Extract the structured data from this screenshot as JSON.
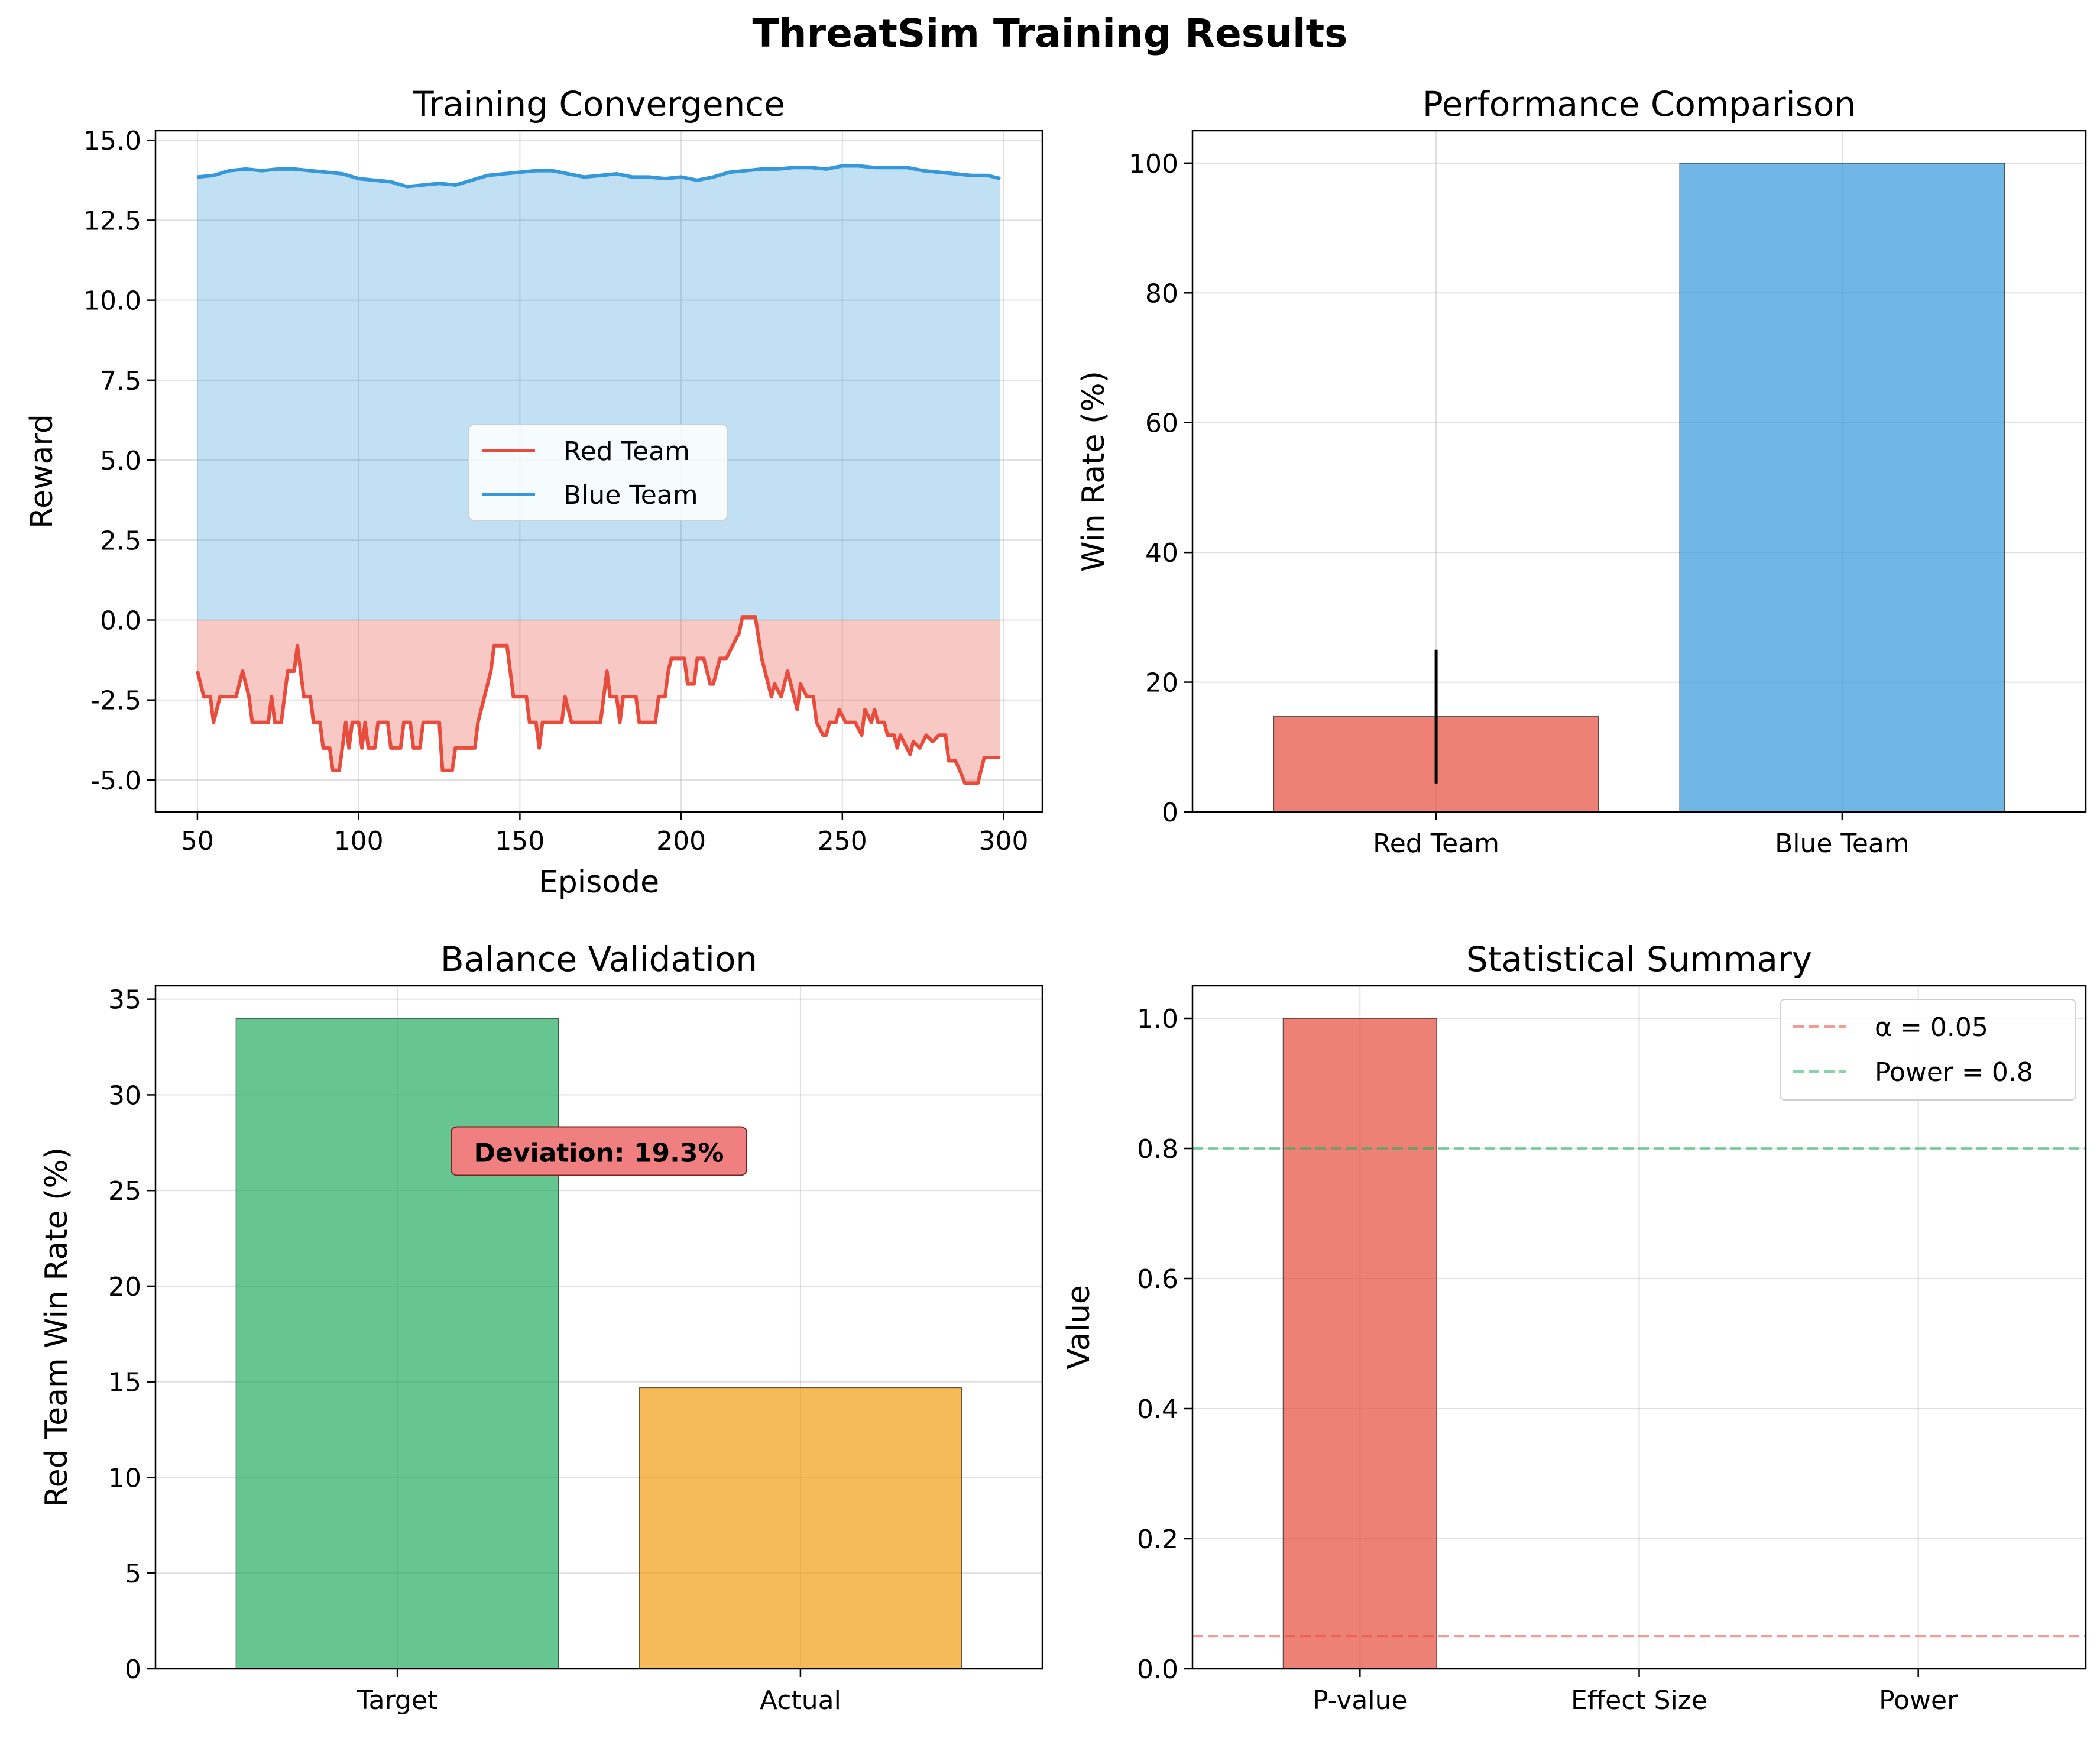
{
  "figure": {
    "title": "ThreatSim Training Results"
  },
  "chart_data": [
    {
      "type": "line",
      "title": "Training Convergence",
      "xlabel": "Episode",
      "ylabel": "Reward",
      "xlim": [
        37,
        312
      ],
      "ylim": [
        -6.0,
        15.3
      ],
      "xticks": [
        50,
        100,
        150,
        200,
        250,
        300
      ],
      "yticks": [
        -5.0,
        -2.5,
        0.0,
        2.5,
        5.0,
        7.5,
        10.0,
        12.5,
        15.0
      ],
      "grid": true,
      "legend_position": "center",
      "fill_to_zero": true,
      "series": [
        {
          "name": "Red Team",
          "color": "#e74c3c",
          "points": [
            [
              50,
              -1.6
            ],
            [
              52,
              -2.4
            ],
            [
              54,
              -2.4
            ],
            [
              55,
              -3.2
            ],
            [
              57,
              -2.4
            ],
            [
              62,
              -2.4
            ],
            [
              64,
              -1.6
            ],
            [
              66,
              -2.4
            ],
            [
              67,
              -3.2
            ],
            [
              72,
              -3.2
            ],
            [
              73,
              -2.4
            ],
            [
              74,
              -3.2
            ],
            [
              76,
              -3.2
            ],
            [
              78,
              -1.6
            ],
            [
              80,
              -1.6
            ],
            [
              81,
              -0.8
            ],
            [
              83,
              -2.4
            ],
            [
              85,
              -2.4
            ],
            [
              86,
              -3.2
            ],
            [
              88,
              -3.2
            ],
            [
              89,
              -4.0
            ],
            [
              91,
              -4.0
            ],
            [
              92,
              -4.7
            ],
            [
              94,
              -4.7
            ],
            [
              96,
              -3.2
            ],
            [
              97,
              -4.0
            ],
            [
              98,
              -3.2
            ],
            [
              100,
              -3.2
            ],
            [
              101,
              -4.0
            ],
            [
              102,
              -3.2
            ],
            [
              103,
              -4.0
            ],
            [
              105,
              -4.0
            ],
            [
              106,
              -3.2
            ],
            [
              109,
              -3.2
            ],
            [
              110,
              -4.0
            ],
            [
              113,
              -4.0
            ],
            [
              114,
              -3.2
            ],
            [
              116,
              -3.2
            ],
            [
              117,
              -4.0
            ],
            [
              119,
              -4.0
            ],
            [
              120,
              -3.2
            ],
            [
              125,
              -3.2
            ],
            [
              126,
              -4.7
            ],
            [
              129,
              -4.7
            ],
            [
              130,
              -4.0
            ],
            [
              136,
              -4.0
            ],
            [
              137,
              -3.2
            ],
            [
              139,
              -2.4
            ],
            [
              141,
              -1.6
            ],
            [
              142,
              -0.8
            ],
            [
              146,
              -0.8
            ],
            [
              148,
              -2.4
            ],
            [
              152,
              -2.4
            ],
            [
              153,
              -3.2
            ],
            [
              155,
              -3.2
            ],
            [
              156,
              -4.0
            ],
            [
              157,
              -3.2
            ],
            [
              163,
              -3.2
            ],
            [
              164,
              -2.4
            ],
            [
              166,
              -3.2
            ],
            [
              175,
              -3.2
            ],
            [
              177,
              -1.6
            ],
            [
              178,
              -2.4
            ],
            [
              180,
              -2.4
            ],
            [
              181,
              -3.2
            ],
            [
              182,
              -2.4
            ],
            [
              186,
              -2.4
            ],
            [
              187,
              -3.2
            ],
            [
              192,
              -3.2
            ],
            [
              193,
              -2.4
            ],
            [
              195,
              -2.4
            ],
            [
              196,
              -1.6
            ],
            [
              197,
              -1.2
            ],
            [
              201,
              -1.2
            ],
            [
              202,
              -2.0
            ],
            [
              204,
              -2.0
            ],
            [
              205,
              -1.2
            ],
            [
              207,
              -1.2
            ],
            [
              209,
              -2.0
            ],
            [
              210,
              -2.0
            ],
            [
              212,
              -1.2
            ],
            [
              214,
              -1.2
            ],
            [
              216,
              -0.8
            ],
            [
              218,
              -0.4
            ],
            [
              219,
              0.1
            ],
            [
              223,
              0.1
            ],
            [
              225,
              -1.2
            ],
            [
              226,
              -1.6
            ],
            [
              228,
              -2.4
            ],
            [
              229,
              -2.0
            ],
            [
              231,
              -2.4
            ],
            [
              233,
              -1.6
            ],
            [
              235,
              -2.4
            ],
            [
              236,
              -2.8
            ],
            [
              237,
              -2.0
            ],
            [
              239,
              -2.4
            ],
            [
              241,
              -2.4
            ],
            [
              242,
              -3.2
            ],
            [
              244,
              -3.6
            ],
            [
              245,
              -3.6
            ],
            [
              246,
              -3.2
            ],
            [
              248,
              -3.2
            ],
            [
              249,
              -2.8
            ],
            [
              251,
              -3.2
            ],
            [
              254,
              -3.2
            ],
            [
              256,
              -3.6
            ],
            [
              257,
              -2.8
            ],
            [
              259,
              -3.2
            ],
            [
              260,
              -2.8
            ],
            [
              261,
              -3.2
            ],
            [
              263,
              -3.2
            ],
            [
              264,
              -3.6
            ],
            [
              266,
              -3.6
            ],
            [
              267,
              -4.0
            ],
            [
              268,
              -3.6
            ],
            [
              270,
              -4.0
            ],
            [
              271,
              -4.2
            ],
            [
              272,
              -3.8
            ],
            [
              274,
              -4.0
            ],
            [
              276,
              -3.6
            ],
            [
              278,
              -3.8
            ],
            [
              280,
              -3.6
            ],
            [
              282,
              -3.6
            ],
            [
              283,
              -4.4
            ],
            [
              285,
              -4.4
            ],
            [
              286,
              -4.6
            ],
            [
              288,
              -5.1
            ],
            [
              292,
              -5.1
            ],
            [
              294,
              -4.3
            ],
            [
              299,
              -4.3
            ]
          ]
        },
        {
          "name": "Blue Team",
          "color": "#3498db",
          "points": [
            [
              50,
              13.85
            ],
            [
              55,
              13.9
            ],
            [
              60,
              14.05
            ],
            [
              65,
              14.1
            ],
            [
              70,
              14.05
            ],
            [
              75,
              14.1
            ],
            [
              80,
              14.1
            ],
            [
              85,
              14.05
            ],
            [
              90,
              14.0
            ],
            [
              95,
              13.95
            ],
            [
              100,
              13.8
            ],
            [
              105,
              13.75
            ],
            [
              110,
              13.7
            ],
            [
              115,
              13.55
            ],
            [
              120,
              13.6
            ],
            [
              125,
              13.65
            ],
            [
              130,
              13.6
            ],
            [
              135,
              13.75
            ],
            [
              140,
              13.9
            ],
            [
              145,
              13.95
            ],
            [
              150,
              14.0
            ],
            [
              155,
              14.05
            ],
            [
              160,
              14.05
            ],
            [
              165,
              13.95
            ],
            [
              170,
              13.85
            ],
            [
              175,
              13.9
            ],
            [
              180,
              13.95
            ],
            [
              185,
              13.85
            ],
            [
              190,
              13.85
            ],
            [
              195,
              13.8
            ],
            [
              200,
              13.85
            ],
            [
              205,
              13.75
            ],
            [
              210,
              13.85
            ],
            [
              215,
              14.0
            ],
            [
              220,
              14.05
            ],
            [
              225,
              14.1
            ],
            [
              230,
              14.1
            ],
            [
              235,
              14.15
            ],
            [
              240,
              14.15
            ],
            [
              245,
              14.1
            ],
            [
              250,
              14.2
            ],
            [
              255,
              14.2
            ],
            [
              260,
              14.15
            ],
            [
              265,
              14.15
            ],
            [
              270,
              14.15
            ],
            [
              275,
              14.05
            ],
            [
              280,
              14.0
            ],
            [
              285,
              13.95
            ],
            [
              290,
              13.9
            ],
            [
              295,
              13.9
            ],
            [
              299,
              13.8
            ]
          ]
        }
      ]
    },
    {
      "type": "bar",
      "title": "Performance Comparison",
      "xlabel": "",
      "ylabel": "Win Rate (%)",
      "categories": [
        "Red Team",
        "Blue Team"
      ],
      "values": [
        14.7,
        100.0
      ],
      "error": [
        10.3,
        0
      ],
      "colors": [
        "#e74c3c",
        "#3498db"
      ],
      "ylim": [
        0,
        105
      ],
      "yticks": [
        0,
        20,
        40,
        60,
        80,
        100
      ],
      "grid": true
    },
    {
      "type": "bar",
      "title": "Balance Validation",
      "xlabel": "",
      "ylabel": "Red Team Win Rate (%)",
      "categories": [
        "Target",
        "Actual"
      ],
      "values": [
        34.0,
        14.7
      ],
      "colors": [
        "#27ae60",
        "#f39c12"
      ],
      "ylim": [
        0,
        35.7
      ],
      "yticks": [
        0,
        5,
        10,
        15,
        20,
        25,
        30,
        35
      ],
      "grid": true,
      "annotation": {
        "text": "Deviation: 19.3%",
        "y": 27.0
      }
    },
    {
      "type": "bar",
      "title": "Statistical Summary",
      "xlabel": "",
      "ylabel": "Value",
      "categories": [
        "P-value",
        "Effect Size",
        "Power"
      ],
      "values": [
        1.0,
        0.0,
        0.0
      ],
      "colors": [
        "#e74c3c",
        "#e74c3c",
        "#e74c3c"
      ],
      "ylim": [
        0,
        1.05
      ],
      "yticks": [
        0.0,
        0.2,
        0.4,
        0.6,
        0.8,
        1.0
      ],
      "grid": true,
      "legend_position": "top-right",
      "reference_lines": [
        {
          "label": "α = 0.05",
          "y": 0.05,
          "color": "#e74c3c"
        },
        {
          "label": "Power = 0.8",
          "y": 0.8,
          "color": "#27ae60"
        }
      ]
    }
  ]
}
